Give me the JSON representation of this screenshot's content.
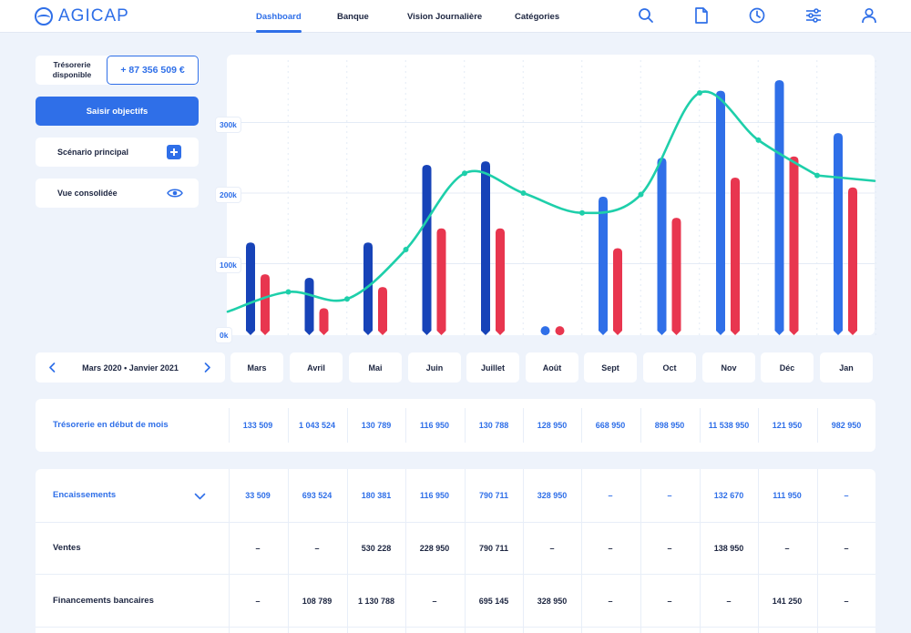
{
  "app": {
    "name": "AGICAP"
  },
  "nav": {
    "tabs": [
      {
        "label": "Dashboard",
        "active": true
      },
      {
        "label": "Banque",
        "active": false
      },
      {
        "label": "Vision Journalière",
        "active": false
      },
      {
        "label": "Catégories",
        "active": false
      }
    ],
    "icons": [
      "search-icon",
      "document-icon",
      "clock-icon",
      "sliders-icon",
      "user-icon"
    ]
  },
  "sidebar": {
    "treso_label": "Trésorerie disponible",
    "treso_value": "+ 87 356 509 €",
    "objectives_button": "Saisir objectifs",
    "scenario_label": "Scénario principal",
    "consolidated_label": "Vue consolidée"
  },
  "colors": {
    "accent": "#2f6fe8",
    "bar_dark": "#1743b8",
    "bar_blue": "#2f6fe8",
    "bar_red": "#e8364f",
    "line": "#1ecfaa"
  },
  "chart_data": {
    "type": "bar",
    "categories": [
      "Mars",
      "Avril",
      "Mai",
      "Juin",
      "Juillet",
      "Août",
      "Sept",
      "Oct",
      "Nov",
      "Déc",
      "Jan"
    ],
    "series": [
      {
        "values": [
          130,
          80,
          130,
          240,
          245,
          5,
          195,
          250,
          345,
          360,
          285
        ]
      },
      {
        "values": [
          85,
          37,
          67,
          150,
          150,
          5,
          122,
          165,
          222,
          252,
          208
        ]
      },
      {
        "type": "line",
        "values": [
          32,
          60,
          50,
          120,
          228,
          200,
          172,
          198,
          342,
          275,
          225
        ]
      }
    ],
    "yticks": [
      "0k",
      "100k",
      "200k",
      "300k"
    ],
    "ylim": [
      0,
      370
    ],
    "grid": true
  },
  "period": {
    "label": "Mars 2020 • Janvier 2021"
  },
  "table1": {
    "rows": [
      {
        "label": "Trésorerie en début de mois",
        "values": [
          "133 509",
          "1 043 524",
          "130 789",
          "116 950",
          "130 788",
          "128 950",
          "668 950",
          "898 950",
          "11 538 950",
          "121 950",
          "982 950"
        ]
      }
    ]
  },
  "table2": {
    "rows": [
      {
        "label": "Encaissements",
        "values": [
          "33 509",
          "693 524",
          "180 381",
          "116 950",
          "790 711",
          "328 950",
          "–",
          "–",
          "132 670",
          "111 950",
          "–"
        ]
      },
      {
        "label": "Ventes",
        "values": [
          "–",
          "–",
          "530 228",
          "228 950",
          "790 711",
          "–",
          "–",
          "–",
          "138 950",
          "–",
          "–"
        ]
      },
      {
        "label": "Financements bancaires",
        "values": [
          "–",
          "108 789",
          "1 130 788",
          "–",
          "695 145",
          "328 950",
          "–",
          "–",
          "–",
          "141 250",
          "–"
        ]
      }
    ]
  }
}
